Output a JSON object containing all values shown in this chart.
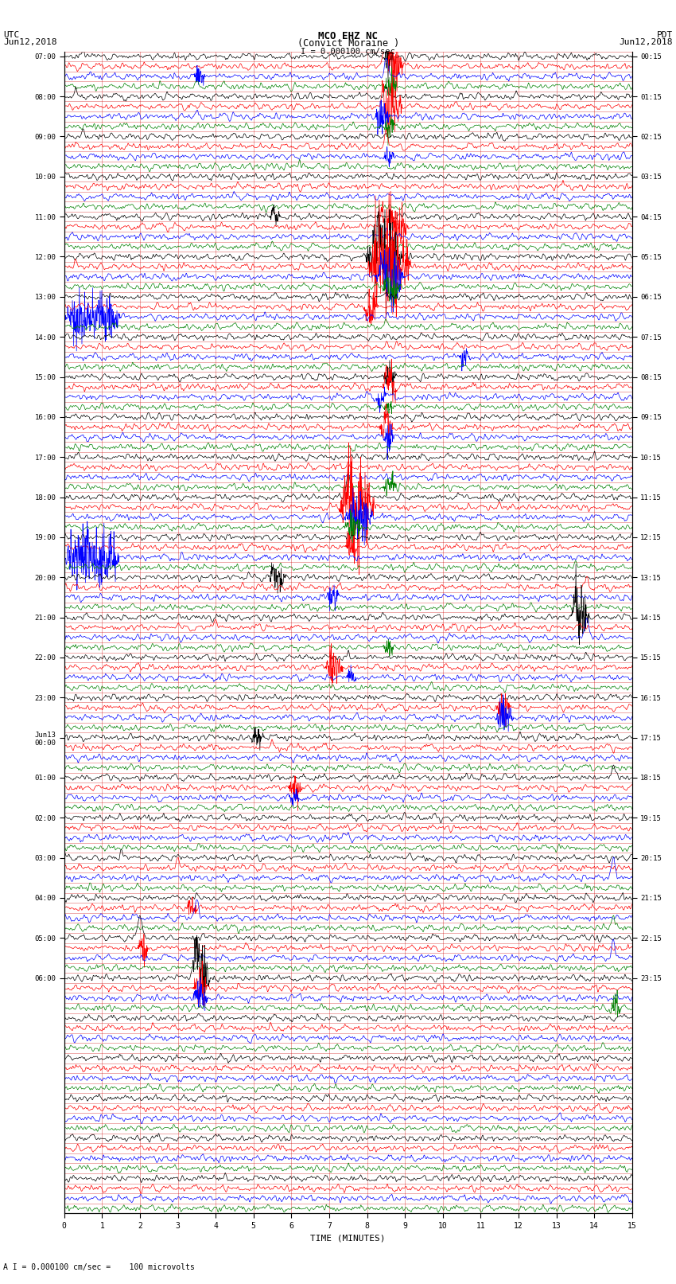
{
  "title_line1": "MCO EHZ NC",
  "title_line2": "(Convict Moraine )",
  "scale_text": "I = 0.000100 cm/sec",
  "bottom_text": "A I = 0.000100 cm/sec =    100 microvolts",
  "xlabel": "TIME (MINUTES)",
  "colors": [
    "black",
    "red",
    "blue",
    "green"
  ],
  "n_rows": 116,
  "n_pts": 1800,
  "x_max": 15,
  "background_color": "white",
  "fig_width": 8.5,
  "fig_height": 16.13,
  "dpi": 100,
  "utc_hour_labels": [
    "07:00",
    "08:00",
    "09:00",
    "10:00",
    "11:00",
    "12:00",
    "13:00",
    "14:00",
    "15:00",
    "16:00",
    "17:00",
    "18:00",
    "19:00",
    "20:00",
    "21:00",
    "22:00",
    "23:00",
    "Jun13\n00:00",
    "01:00",
    "02:00",
    "03:00",
    "04:00",
    "05:00",
    "06:00"
  ],
  "pdt_hour_labels": [
    "00:15",
    "01:15",
    "02:15",
    "03:15",
    "04:15",
    "05:15",
    "06:15",
    "07:15",
    "08:15",
    "09:15",
    "10:15",
    "11:15",
    "12:15",
    "13:15",
    "14:15",
    "15:15",
    "16:15",
    "17:15",
    "18:15",
    "19:15",
    "20:15",
    "21:15",
    "22:15",
    "23:15"
  ]
}
